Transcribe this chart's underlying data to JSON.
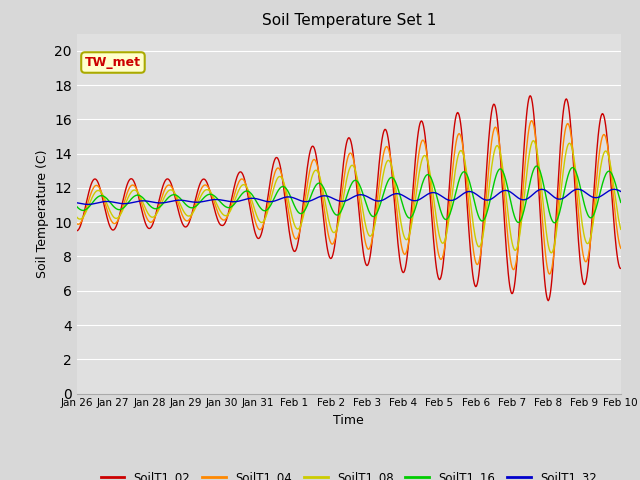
{
  "title": "Soil Temperature Set 1",
  "xlabel": "Time",
  "ylabel": "Soil Temperature (C)",
  "ylim": [
    0,
    21
  ],
  "yticks": [
    0,
    2,
    4,
    6,
    8,
    10,
    12,
    14,
    16,
    18,
    20
  ],
  "xlabels": [
    "Jan 26",
    "Jan 27",
    "Jan 28",
    "Jan 29",
    "Jan 30",
    "Jan 31",
    "Feb 1",
    "Feb 2",
    "Feb 3",
    "Feb 4",
    "Feb 5",
    "Feb 6",
    "Feb 7",
    "Feb 8",
    "Feb 9",
    "Feb 10"
  ],
  "annotation": "TW_met",
  "annotation_color": "#cc0000",
  "annotation_bg": "#ffffcc",
  "bg_color": "#d8d8d8",
  "plot_bg": "#e0e0e0",
  "grid_color": "#ffffff",
  "series": [
    {
      "label": "SoilT1_02",
      "color": "#cc0000"
    },
    {
      "label": "SoilT1_04",
      "color": "#ff8800"
    },
    {
      "label": "SoilT1_08",
      "color": "#cccc00"
    },
    {
      "label": "SoilT1_16",
      "color": "#00cc00"
    },
    {
      "label": "SoilT1_32",
      "color": "#0000cc"
    }
  ]
}
